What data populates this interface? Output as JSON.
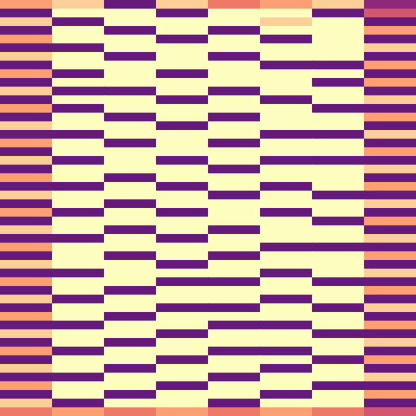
{
  "chart_data": {
    "type": "heatmap",
    "tick_labels": false,
    "xlim": [
      0,
      8
    ],
    "ylim": [
      0,
      48
    ],
    "color_range": [
      0,
      1
    ],
    "cells": [
      [
        0.8,
        0.9,
        0.3,
        0.9,
        0.7,
        0.8,
        0.9,
        0.4
      ],
      [
        0.3,
        1,
        1,
        0.3,
        1,
        1,
        0.3,
        0.6
      ],
      [
        0.9,
        0.3,
        1,
        1,
        1,
        0.9,
        1,
        0.3
      ],
      [
        0.3,
        1,
        0.3,
        1,
        0.3,
        1,
        1,
        0.8
      ],
      [
        0.8,
        1,
        1,
        0.3,
        1,
        0.3,
        1,
        0.3
      ],
      [
        0.3,
        0.3,
        1,
        1,
        1,
        1,
        1,
        0.9
      ],
      [
        0.9,
        1,
        0.3,
        1,
        0.3,
        1,
        1,
        0.3
      ],
      [
        0.3,
        1,
        1,
        1,
        1,
        0.3,
        0.3,
        0.8
      ],
      [
        0.8,
        0.3,
        1,
        0.3,
        1,
        1,
        1,
        0.3
      ],
      [
        0.3,
        1,
        1,
        1,
        1,
        1,
        0.3,
        0.8
      ],
      [
        0.9,
        0.3,
        0.3,
        1,
        0.3,
        1,
        1,
        0.3
      ],
      [
        0.3,
        1,
        1,
        0.3,
        1,
        0.3,
        1,
        0.9
      ],
      [
        0.8,
        0.3,
        1,
        1,
        1,
        1,
        0.3,
        0.3
      ],
      [
        0.3,
        1,
        0.3,
        1,
        0.3,
        1,
        1,
        0.8
      ],
      [
        0.9,
        1,
        1,
        0.3,
        1,
        1,
        1,
        0.3
      ],
      [
        0.3,
        0.3,
        1,
        1,
        1,
        0.3,
        0.3,
        0.9
      ],
      [
        0.8,
        1,
        0.3,
        1,
        0.3,
        1,
        1,
        0.3
      ],
      [
        0.3,
        1,
        1,
        1,
        1,
        1,
        1,
        0.8
      ],
      [
        0.9,
        0.3,
        1,
        0.3,
        1,
        0.3,
        0.3,
        0.3
      ],
      [
        0.3,
        1,
        1,
        1,
        0.3,
        1,
        1,
        0.9
      ],
      [
        0.8,
        1,
        0.3,
        1,
        1,
        1,
        1,
        0.3
      ],
      [
        0.3,
        0.3,
        1,
        0.3,
        1,
        0.3,
        1,
        0.8
      ],
      [
        0.9,
        1,
        1,
        1,
        0.3,
        1,
        0.3,
        0.3
      ],
      [
        0.3,
        1,
        0.3,
        1,
        1,
        1,
        1,
        0.9
      ],
      [
        0.8,
        0.3,
        1,
        0.3,
        1,
        0.3,
        1,
        0.3
      ],
      [
        0.3,
        1,
        1,
        1,
        1,
        1,
        0.3,
        0.8
      ],
      [
        0.9,
        1,
        0.3,
        1,
        0.3,
        1,
        1,
        0.3
      ],
      [
        0.3,
        0.3,
        1,
        0.3,
        1,
        1,
        1,
        0.9
      ],
      [
        0.8,
        1,
        1,
        1,
        1,
        0.3,
        0.3,
        0.3
      ],
      [
        0.3,
        1,
        0.3,
        1,
        0.3,
        1,
        1,
        0.8
      ],
      [
        0.9,
        1,
        1,
        0.3,
        1,
        1,
        1,
        0.3
      ],
      [
        0.3,
        0.3,
        1,
        1,
        1,
        0.3,
        1,
        0.9
      ],
      [
        0.8,
        1,
        1,
        0.3,
        0.3,
        1,
        0.3,
        0.3
      ],
      [
        0.3,
        1,
        0.3,
        1,
        1,
        1,
        1,
        0.8
      ],
      [
        0.9,
        0.3,
        1,
        1,
        1,
        0.3,
        1,
        0.3
      ],
      [
        0.3,
        1,
        1,
        0.3,
        0.3,
        1,
        0.3,
        0.9
      ],
      [
        0.8,
        1,
        0.3,
        1,
        1,
        1,
        1,
        0.3
      ],
      [
        0.3,
        0.3,
        1,
        1,
        0.3,
        0.3,
        1,
        0.8
      ],
      [
        0.9,
        1,
        1,
        0.3,
        1,
        1,
        0.3,
        0.3
      ],
      [
        0.3,
        1,
        0.3,
        1,
        1,
        1,
        1,
        0.9
      ],
      [
        0.8,
        0.3,
        1,
        1,
        0.3,
        0.3,
        1,
        0.3
      ],
      [
        0.3,
        1,
        1,
        0.3,
        1,
        1,
        0.3,
        0.8
      ],
      [
        0.9,
        1,
        0.3,
        1,
        1,
        0.3,
        1,
        0.3
      ],
      [
        0.3,
        0.3,
        1,
        1,
        0.3,
        1,
        1,
        0.9
      ],
      [
        0.8,
        1,
        1,
        0.3,
        1,
        1,
        0.3,
        0.3
      ],
      [
        0.3,
        1,
        0.3,
        1,
        1,
        0.3,
        1,
        0.8
      ],
      [
        0.9,
        0.3,
        1,
        1,
        0.3,
        1,
        1,
        0.3
      ],
      [
        0.7,
        0.8,
        0.7,
        0.8,
        0.7,
        0.8,
        0.7,
        0.6
      ]
    ]
  }
}
